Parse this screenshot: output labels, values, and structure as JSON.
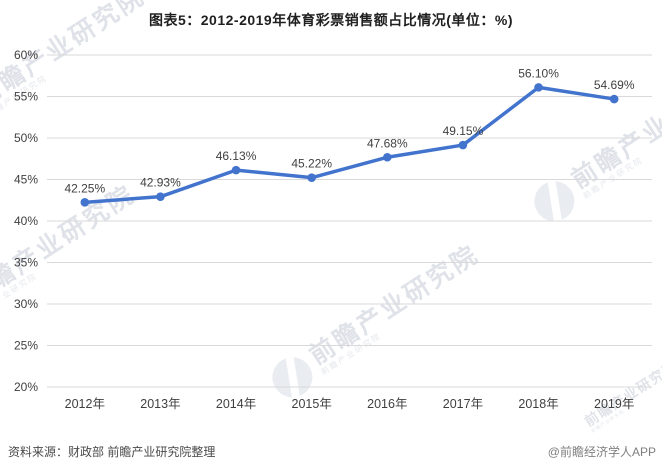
{
  "title": "图表5：2012-2019年体育彩票销售额占比情况(单位：%)",
  "chart_data": {
    "type": "line",
    "title": "图表5：2012-2019年体育彩票销售额占比情况(单位：%)",
    "categories": [
      "2012年",
      "2013年",
      "2014年",
      "2015年",
      "2016年",
      "2017年",
      "2018年",
      "2019年"
    ],
    "values": [
      42.25,
      42.93,
      46.13,
      45.22,
      47.68,
      49.15,
      56.1,
      54.69
    ],
    "point_labels": [
      "42.25%",
      "42.93%",
      "46.13%",
      "45.22%",
      "47.68%",
      "49.15%",
      "56.10%",
      "54.69%"
    ],
    "xlabel": "",
    "ylabel": "",
    "ylim": [
      20,
      60
    ],
    "y_tick_step": 5,
    "y_tick_labels": [
      "20%",
      "25%",
      "30%",
      "35%",
      "40%",
      "45%",
      "50%",
      "55%",
      "60%"
    ],
    "grid": true,
    "legend": false,
    "line_color": "#4274CE",
    "marker_color": "#4274CE",
    "grid_color": "#d9d9d9",
    "axis_text_color": "#404040",
    "label_text_color": "#404040"
  },
  "footer": {
    "source": "资料来源：财政部 前瞻产业研究院整理",
    "credit": "@前瞻经济学人APP"
  },
  "watermark": {
    "text": "前瞻产业研究院"
  }
}
